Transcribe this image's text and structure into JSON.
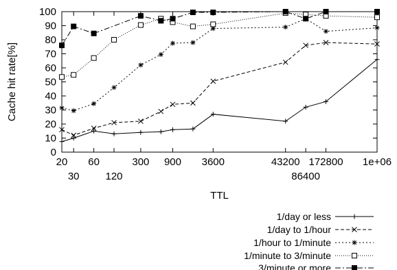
{
  "chart_data": {
    "type": "line",
    "xlabel": "TTL",
    "ylabel": "Cache hit rate[%]",
    "x_scale": "log",
    "ylim": [
      0,
      100
    ],
    "y_ticks": [
      0,
      10,
      20,
      30,
      40,
      50,
      60,
      70,
      80,
      90,
      100
    ],
    "x_ticks": [
      {
        "value": 20,
        "label": "20",
        "row": 1
      },
      {
        "value": 30,
        "label": "30",
        "row": 2
      },
      {
        "value": 60,
        "label": "60",
        "row": 1
      },
      {
        "value": 120,
        "label": "120",
        "row": 2
      },
      {
        "value": 300,
        "label": "300",
        "row": 1
      },
      {
        "value": 900,
        "label": "900",
        "row": 1
      },
      {
        "value": 3600,
        "label": "3600",
        "row": 1
      },
      {
        "value": 43200,
        "label": "43200",
        "row": 1
      },
      {
        "value": 86400,
        "label": "86400",
        "row": 2
      },
      {
        "value": 172800,
        "label": "172800",
        "row": 1
      },
      {
        "value": 1000000,
        "label": "1e+06",
        "row": 1
      }
    ],
    "x": [
      20,
      30,
      60,
      120,
      300,
      600,
      900,
      1800,
      3600,
      43200,
      86400,
      172800,
      1000000
    ],
    "grid": false,
    "legend_position": "bottom-right",
    "series": [
      {
        "name": "1/day or less",
        "marker": "plus",
        "dash": "",
        "values": [
          7.5,
          10,
          15,
          13,
          14,
          14.5,
          16,
          16.5,
          27,
          22,
          32,
          36,
          66
        ]
      },
      {
        "name": "1/day to 1/hour",
        "marker": "x",
        "dash": "5,3",
        "values": [
          16,
          12,
          17,
          21,
          22,
          29,
          34,
          35,
          50.5,
          64,
          76,
          78,
          77
        ]
      },
      {
        "name": "1/hour to 1/minute",
        "marker": "star",
        "dash": "2,3",
        "values": [
          31.5,
          29.5,
          34.5,
          46,
          62,
          69.5,
          77.5,
          78,
          88,
          89,
          95,
          86,
          88.5
        ]
      },
      {
        "name": "1/minute to 3/minute",
        "marker": "open-square",
        "dash": "1,2",
        "values": [
          53.5,
          55,
          67,
          80,
          90.5,
          95,
          92.5,
          89.5,
          91,
          99,
          98,
          97,
          96
        ]
      },
      {
        "name": "3/minute or more",
        "marker": "filled-square",
        "dash": "8,3,2,3",
        "values": [
          76,
          89.5,
          84.5,
          null,
          97,
          93.5,
          95,
          99.5,
          99.5,
          100,
          95,
          100,
          100
        ]
      }
    ]
  }
}
